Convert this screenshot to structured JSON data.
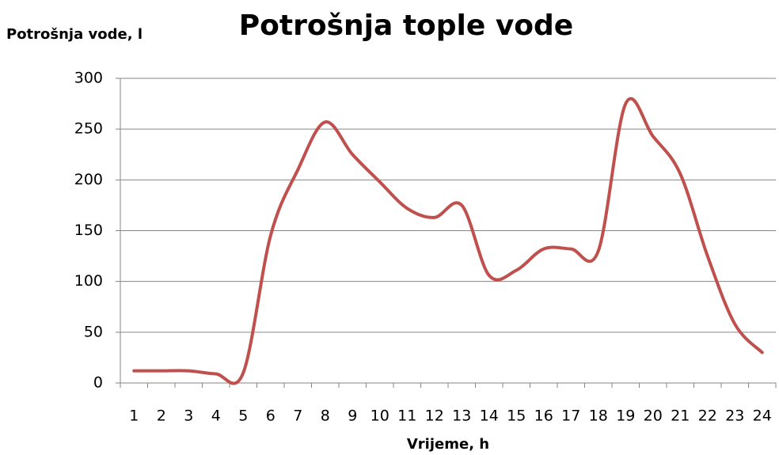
{
  "chart_data": {
    "type": "line",
    "title": "Potrošnja tople vode",
    "y_axis_label": "Potrošnja vode, l",
    "x_axis_label": "Vrijeme, h",
    "categories": [
      "1",
      "2",
      "3",
      "4",
      "5",
      "6",
      "7",
      "8",
      "9",
      "10",
      "11",
      "12",
      "13",
      "14",
      "15",
      "16",
      "17",
      "18",
      "19",
      "20",
      "21",
      "22",
      "23",
      "24"
    ],
    "series": [
      {
        "name": "Potrošnja",
        "color": "#c0504d",
        "values": [
          12,
          12,
          12,
          9,
          10,
          145,
          210,
          257,
          225,
          198,
          172,
          163,
          175,
          106,
          111,
          132,
          132,
          130,
          275,
          243,
          206,
          125,
          58,
          30
        ]
      }
    ],
    "ylim": [
      0,
      300
    ],
    "yticks": [
      0,
      50,
      100,
      150,
      200,
      250,
      300
    ],
    "grid": true,
    "smooth": true
  }
}
